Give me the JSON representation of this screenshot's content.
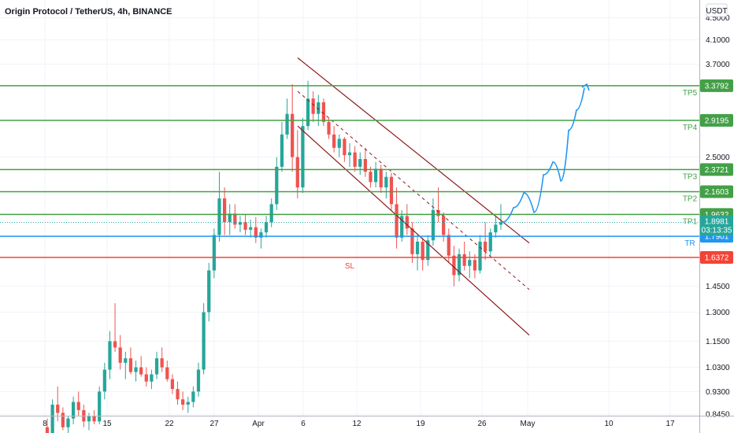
{
  "header": {
    "title": "Origin Protocol / TetherUS, 4h, BINANCE",
    "currency": "USDT"
  },
  "chart_data": {
    "type": "candlestick",
    "title": "Origin Protocol / TetherUS, 4h, BINANCE",
    "scale": "log",
    "ylim": [
      0.84,
      4.85
    ],
    "y_ticks": [
      "4.5000",
      "4.1000",
      "3.7000",
      "2.5000",
      "1.4500",
      "1.3000",
      "1.1500",
      "1.0300",
      "0.9300",
      "0.8450"
    ],
    "x_ticks": [
      "8",
      "15",
      "22",
      "27",
      "Apr",
      "6",
      "12",
      "19",
      "26",
      "May",
      "10",
      "17"
    ],
    "current_price": "1.8981",
    "countdown": "03:13:35",
    "levels": [
      {
        "label": "TP5",
        "value": 3.3792,
        "tag": "3.3792",
        "color": "#43a047"
      },
      {
        "label": "TP4",
        "value": 2.9195,
        "tag": "2.9195",
        "color": "#43a047"
      },
      {
        "label": "TP3",
        "value": 2.3721,
        "tag": "2.3721",
        "color": "#43a047"
      },
      {
        "label": "TP2",
        "value": 2.1603,
        "tag": "2.1603",
        "color": "#43a047"
      },
      {
        "label": "TP1",
        "value": 1.9632,
        "tag": "1.9632",
        "color": "#43a047"
      },
      {
        "label": "TR",
        "value": 1.7901,
        "tag": "1.7901",
        "color": "#2196f3"
      },
      {
        "label": "SL",
        "value": 1.6372,
        "tag": "1.6372",
        "color": "#f44336"
      }
    ],
    "colors": {
      "up": "#26a69a",
      "down": "#ef5350",
      "channel": "#8b1a1a",
      "projection": "#2196f3",
      "grid": "#f0f3fa",
      "axis_border": "#b2b5be",
      "last_price_line": "#26a69a"
    },
    "candles_approx": [
      [
        0.8,
        0.83,
        0.76,
        0.78
      ],
      [
        0.78,
        0.9,
        0.77,
        0.88
      ],
      [
        0.88,
        0.95,
        0.82,
        0.85
      ],
      [
        0.85,
        0.87,
        0.79,
        0.8
      ],
      [
        0.8,
        0.84,
        0.78,
        0.83
      ],
      [
        0.83,
        0.91,
        0.81,
        0.89
      ],
      [
        0.89,
        0.93,
        0.84,
        0.86
      ],
      [
        0.86,
        0.88,
        0.8,
        0.82
      ],
      [
        0.82,
        0.85,
        0.79,
        0.84
      ],
      [
        0.84,
        0.86,
        0.81,
        0.82
      ],
      [
        0.82,
        0.95,
        0.81,
        0.93
      ],
      [
        0.93,
        1.05,
        0.9,
        1.02
      ],
      [
        1.02,
        1.2,
        0.98,
        1.15
      ],
      [
        1.15,
        1.35,
        1.1,
        1.12
      ],
      [
        1.12,
        1.18,
        1.02,
        1.05
      ],
      [
        1.05,
        1.1,
        0.98,
        1.07
      ],
      [
        1.07,
        1.12,
        1.0,
        1.01
      ],
      [
        1.01,
        1.06,
        0.97,
        1.03
      ],
      [
        1.03,
        1.08,
        0.99,
        1.0
      ],
      [
        1.0,
        1.03,
        0.95,
        0.97
      ],
      [
        0.97,
        1.02,
        0.94,
        1.0
      ],
      [
        1.0,
        1.1,
        0.98,
        1.07
      ],
      [
        1.07,
        1.12,
        1.01,
        1.03
      ],
      [
        1.03,
        1.06,
        0.97,
        0.98
      ],
      [
        0.98,
        1.0,
        0.92,
        0.94
      ],
      [
        0.94,
        0.97,
        0.88,
        0.9
      ],
      [
        0.9,
        0.93,
        0.86,
        0.88
      ],
      [
        0.88,
        0.91,
        0.85,
        0.89
      ],
      [
        0.89,
        0.95,
        0.87,
        0.93
      ],
      [
        0.93,
        1.05,
        0.91,
        1.02
      ],
      [
        1.02,
        1.35,
        1.0,
        1.3
      ],
      [
        1.3,
        1.6,
        1.25,
        1.55
      ],
      [
        1.55,
        1.85,
        1.5,
        1.8
      ],
      [
        1.8,
        2.35,
        1.75,
        2.1
      ],
      [
        2.1,
        2.2,
        1.8,
        1.9
      ],
      [
        1.9,
        2.05,
        1.8,
        1.97
      ],
      [
        1.97,
        2.05,
        1.85,
        1.88
      ],
      [
        1.88,
        1.95,
        1.82,
        1.9
      ],
      [
        1.9,
        1.96,
        1.8,
        1.84
      ],
      [
        1.84,
        1.92,
        1.78,
        1.86
      ],
      [
        1.86,
        1.94,
        1.74,
        1.78
      ],
      [
        1.78,
        1.85,
        1.7,
        1.82
      ],
      [
        1.82,
        1.95,
        1.78,
        1.9
      ],
      [
        1.9,
        2.1,
        1.86,
        2.05
      ],
      [
        2.05,
        2.5,
        2.0,
        2.4
      ],
      [
        2.4,
        2.9,
        2.35,
        2.75
      ],
      [
        2.75,
        3.2,
        2.7,
        3.0
      ],
      [
        3.0,
        3.4,
        2.35,
        2.5
      ],
      [
        2.5,
        2.8,
        2.1,
        2.2
      ],
      [
        2.2,
        2.95,
        2.15,
        2.85
      ],
      [
        2.85,
        3.45,
        2.8,
        3.2
      ],
      [
        3.2,
        3.3,
        2.9,
        3.0
      ],
      [
        3.0,
        3.25,
        2.85,
        3.15
      ],
      [
        3.15,
        3.2,
        2.85,
        2.9
      ],
      [
        2.9,
        2.95,
        2.7,
        2.75
      ],
      [
        2.75,
        2.85,
        2.55,
        2.6
      ],
      [
        2.6,
        2.75,
        2.5,
        2.7
      ],
      [
        2.7,
        2.72,
        2.45,
        2.52
      ],
      [
        2.52,
        2.65,
        2.4,
        2.55
      ],
      [
        2.55,
        2.62,
        2.35,
        2.4
      ],
      [
        2.4,
        2.55,
        2.32,
        2.48
      ],
      [
        2.48,
        2.6,
        2.3,
        2.35
      ],
      [
        2.35,
        2.4,
        2.2,
        2.25
      ],
      [
        2.25,
        2.45,
        2.2,
        2.38
      ],
      [
        2.38,
        2.42,
        2.15,
        2.2
      ],
      [
        2.2,
        2.35,
        2.1,
        2.3
      ],
      [
        2.3,
        2.34,
        2.0,
        2.05
      ],
      [
        2.05,
        2.2,
        1.7,
        1.78
      ],
      [
        1.78,
        2.0,
        1.75,
        1.95
      ],
      [
        1.95,
        2.05,
        1.8,
        1.85
      ],
      [
        1.85,
        1.9,
        1.6,
        1.66
      ],
      [
        1.66,
        1.8,
        1.55,
        1.75
      ],
      [
        1.75,
        1.78,
        1.55,
        1.62
      ],
      [
        1.62,
        1.8,
        1.58,
        1.76
      ],
      [
        1.76,
        2.1,
        1.72,
        2.0
      ],
      [
        2.0,
        2.2,
        1.9,
        1.95
      ],
      [
        1.95,
        1.98,
        1.75,
        1.8
      ],
      [
        1.8,
        1.85,
        1.6,
        1.65
      ],
      [
        1.65,
        1.72,
        1.45,
        1.52
      ],
      [
        1.52,
        1.7,
        1.48,
        1.66
      ],
      [
        1.66,
        1.75,
        1.55,
        1.58
      ],
      [
        1.58,
        1.68,
        1.5,
        1.62
      ],
      [
        1.62,
        1.66,
        1.5,
        1.55
      ],
      [
        1.55,
        1.8,
        1.53,
        1.75
      ],
      [
        1.75,
        1.9,
        1.62,
        1.68
      ],
      [
        1.68,
        1.85,
        1.65,
        1.82
      ],
      [
        1.82,
        1.95,
        1.78,
        1.88
      ],
      [
        1.88,
        2.05,
        1.84,
        1.9
      ]
    ],
    "channel_upper": [
      [
        8.0,
        3.8
      ],
      [
        1.0,
        1.74
      ]
    ],
    "channel_mid": [
      [
        7.0,
        3.3
      ],
      [
        1.0,
        1.43
      ]
    ],
    "channel_lower": [
      [
        6.0,
        2.85
      ],
      [
        1.0,
        1.18
      ]
    ],
    "projection_path": [
      [
        1.9,
        1.95
      ],
      [
        2.05,
        2.0
      ],
      [
        1.98,
        2.4
      ],
      [
        2.2,
        2.32
      ],
      [
        2.95,
        3.5
      ]
    ]
  }
}
